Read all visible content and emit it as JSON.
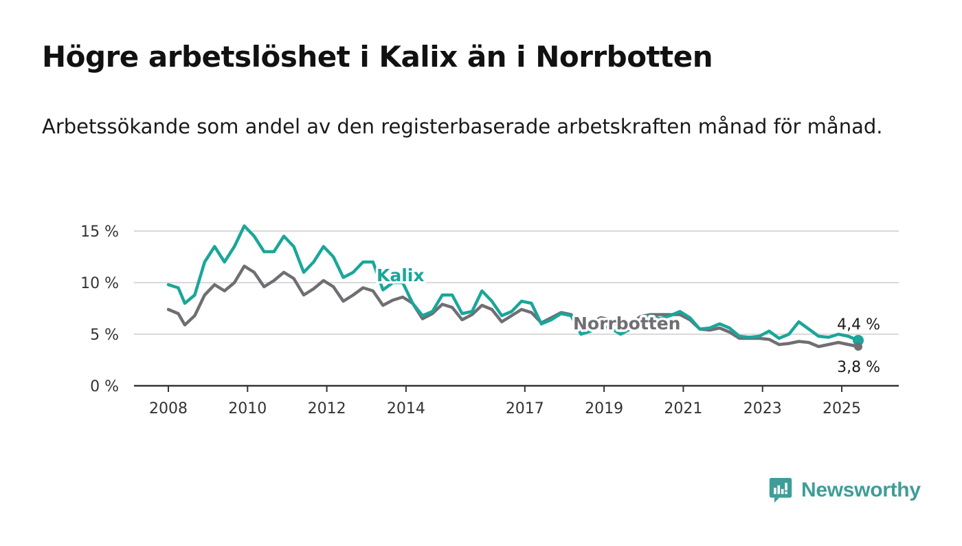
{
  "title": "Högre arbetslöshet i Kalix än i Norrbotten",
  "subtitle": "Arbetssökande som andel av den registerbaserade arbetskraften månad för månad.",
  "brand": "Newsworthy",
  "colors": {
    "kalix": "#1aa69a",
    "norrbotten": "#6f6e73",
    "grid": "#d9d9d9",
    "axis": "#333333"
  },
  "chart_data": {
    "type": "line",
    "x_axis_type": "date",
    "y_unit": "%",
    "ylim": [
      0,
      16
    ],
    "y_ticks": [
      {
        "value": 0,
        "label": "0 %"
      },
      {
        "value": 5,
        "label": "5 %"
      },
      {
        "value": 10,
        "label": "10 %"
      },
      {
        "value": 15,
        "label": "15 %"
      }
    ],
    "x_ticks": [
      "2008",
      "2010",
      "2012",
      "2014",
      "2017",
      "2019",
      "2021",
      "2023",
      "2025"
    ],
    "grid": true,
    "legend": "none",
    "series": [
      {
        "name": "Kalix",
        "color": "#1aa69a",
        "end_label": "4,4 %",
        "points": [
          [
            "2008-01",
            9.8
          ],
          [
            "2008-04",
            9.5
          ],
          [
            "2008-06",
            8.0
          ],
          [
            "2008-09",
            8.8
          ],
          [
            "2008-12",
            12.0
          ],
          [
            "2009-03",
            13.5
          ],
          [
            "2009-06",
            12.0
          ],
          [
            "2009-09",
            13.5
          ],
          [
            "2009-12",
            15.5
          ],
          [
            "2010-03",
            14.5
          ],
          [
            "2010-06",
            13.0
          ],
          [
            "2010-09",
            13.0
          ],
          [
            "2010-12",
            14.5
          ],
          [
            "2011-03",
            13.5
          ],
          [
            "2011-06",
            11.0
          ],
          [
            "2011-09",
            12.0
          ],
          [
            "2011-12",
            13.5
          ],
          [
            "2012-03",
            12.5
          ],
          [
            "2012-06",
            10.5
          ],
          [
            "2012-09",
            11.0
          ],
          [
            "2012-12",
            12.0
          ],
          [
            "2013-03",
            12.0
          ],
          [
            "2013-06",
            9.3
          ],
          [
            "2013-09",
            10.0
          ],
          [
            "2013-12",
            10.0
          ],
          [
            "2014-03",
            8.0
          ],
          [
            "2014-06",
            6.8
          ],
          [
            "2014-09",
            7.2
          ],
          [
            "2014-12",
            8.8
          ],
          [
            "2015-03",
            8.8
          ],
          [
            "2015-06",
            7.0
          ],
          [
            "2015-09",
            7.2
          ],
          [
            "2015-12",
            9.2
          ],
          [
            "2016-03",
            8.2
          ],
          [
            "2016-06",
            6.8
          ],
          [
            "2016-09",
            7.2
          ],
          [
            "2016-12",
            8.2
          ],
          [
            "2017-03",
            8.0
          ],
          [
            "2017-06",
            6.0
          ],
          [
            "2017-09",
            6.4
          ],
          [
            "2017-12",
            7.0
          ],
          [
            "2018-03",
            6.8
          ],
          [
            "2018-06",
            5.0
          ],
          [
            "2018-09",
            5.3
          ],
          [
            "2018-12",
            5.8
          ],
          [
            "2019-03",
            5.6
          ],
          [
            "2019-06",
            5.0
          ],
          [
            "2019-09",
            5.5
          ],
          [
            "2019-12",
            6.5
          ],
          [
            "2020-03",
            6.8
          ],
          [
            "2020-06",
            6.5
          ],
          [
            "2020-09",
            6.8
          ],
          [
            "2020-12",
            7.2
          ],
          [
            "2021-03",
            6.6
          ],
          [
            "2021-06",
            5.5
          ],
          [
            "2021-09",
            5.6
          ],
          [
            "2021-12",
            6.0
          ],
          [
            "2022-03",
            5.6
          ],
          [
            "2022-06",
            4.8
          ],
          [
            "2022-09",
            4.7
          ],
          [
            "2022-12",
            4.8
          ],
          [
            "2023-03",
            5.3
          ],
          [
            "2023-06",
            4.6
          ],
          [
            "2023-09",
            5.0
          ],
          [
            "2023-12",
            6.2
          ],
          [
            "2024-03",
            5.5
          ],
          [
            "2024-06",
            4.8
          ],
          [
            "2024-09",
            4.7
          ],
          [
            "2024-12",
            5.0
          ],
          [
            "2025-03",
            4.8
          ],
          [
            "2025-06",
            4.4
          ]
        ]
      },
      {
        "name": "Norrbotten",
        "color": "#6f6e73",
        "end_label": "3,8 %",
        "points": [
          [
            "2008-01",
            7.4
          ],
          [
            "2008-04",
            7.0
          ],
          [
            "2008-06",
            5.9
          ],
          [
            "2008-09",
            6.8
          ],
          [
            "2008-12",
            8.8
          ],
          [
            "2009-03",
            9.8
          ],
          [
            "2009-06",
            9.2
          ],
          [
            "2009-09",
            10.0
          ],
          [
            "2009-12",
            11.6
          ],
          [
            "2010-03",
            11.0
          ],
          [
            "2010-06",
            9.6
          ],
          [
            "2010-09",
            10.2
          ],
          [
            "2010-12",
            11.0
          ],
          [
            "2011-03",
            10.4
          ],
          [
            "2011-06",
            8.8
          ],
          [
            "2011-09",
            9.4
          ],
          [
            "2011-12",
            10.2
          ],
          [
            "2012-03",
            9.6
          ],
          [
            "2012-06",
            8.2
          ],
          [
            "2012-09",
            8.8
          ],
          [
            "2012-12",
            9.5
          ],
          [
            "2013-03",
            9.2
          ],
          [
            "2013-06",
            7.8
          ],
          [
            "2013-09",
            8.3
          ],
          [
            "2013-12",
            8.6
          ],
          [
            "2014-03",
            8.0
          ],
          [
            "2014-06",
            6.5
          ],
          [
            "2014-09",
            7.0
          ],
          [
            "2014-12",
            7.9
          ],
          [
            "2015-03",
            7.6
          ],
          [
            "2015-06",
            6.4
          ],
          [
            "2015-09",
            6.9
          ],
          [
            "2015-12",
            7.8
          ],
          [
            "2016-03",
            7.4
          ],
          [
            "2016-06",
            6.2
          ],
          [
            "2016-09",
            6.8
          ],
          [
            "2016-12",
            7.4
          ],
          [
            "2017-03",
            7.1
          ],
          [
            "2017-06",
            6.1
          ],
          [
            "2017-09",
            6.6
          ],
          [
            "2017-12",
            7.1
          ],
          [
            "2018-03",
            6.9
          ],
          [
            "2018-06",
            5.8
          ],
          [
            "2018-09",
            6.1
          ],
          [
            "2018-12",
            6.6
          ],
          [
            "2019-03",
            6.4
          ],
          [
            "2019-06",
            5.6
          ],
          [
            "2019-09",
            6.0
          ],
          [
            "2019-12",
            6.7
          ],
          [
            "2020-03",
            6.9
          ],
          [
            "2020-06",
            6.9
          ],
          [
            "2020-09",
            6.9
          ],
          [
            "2020-12",
            6.9
          ],
          [
            "2021-03",
            6.4
          ],
          [
            "2021-06",
            5.5
          ],
          [
            "2021-09",
            5.4
          ],
          [
            "2021-12",
            5.6
          ],
          [
            "2022-03",
            5.2
          ],
          [
            "2022-06",
            4.6
          ],
          [
            "2022-09",
            4.6
          ],
          [
            "2022-12",
            4.6
          ],
          [
            "2023-03",
            4.5
          ],
          [
            "2023-06",
            4.0
          ],
          [
            "2023-09",
            4.1
          ],
          [
            "2023-12",
            4.3
          ],
          [
            "2024-03",
            4.2
          ],
          [
            "2024-06",
            3.8
          ],
          [
            "2024-09",
            4.0
          ],
          [
            "2024-12",
            4.2
          ],
          [
            "2025-03",
            4.0
          ],
          [
            "2025-06",
            3.8
          ]
        ]
      }
    ]
  }
}
